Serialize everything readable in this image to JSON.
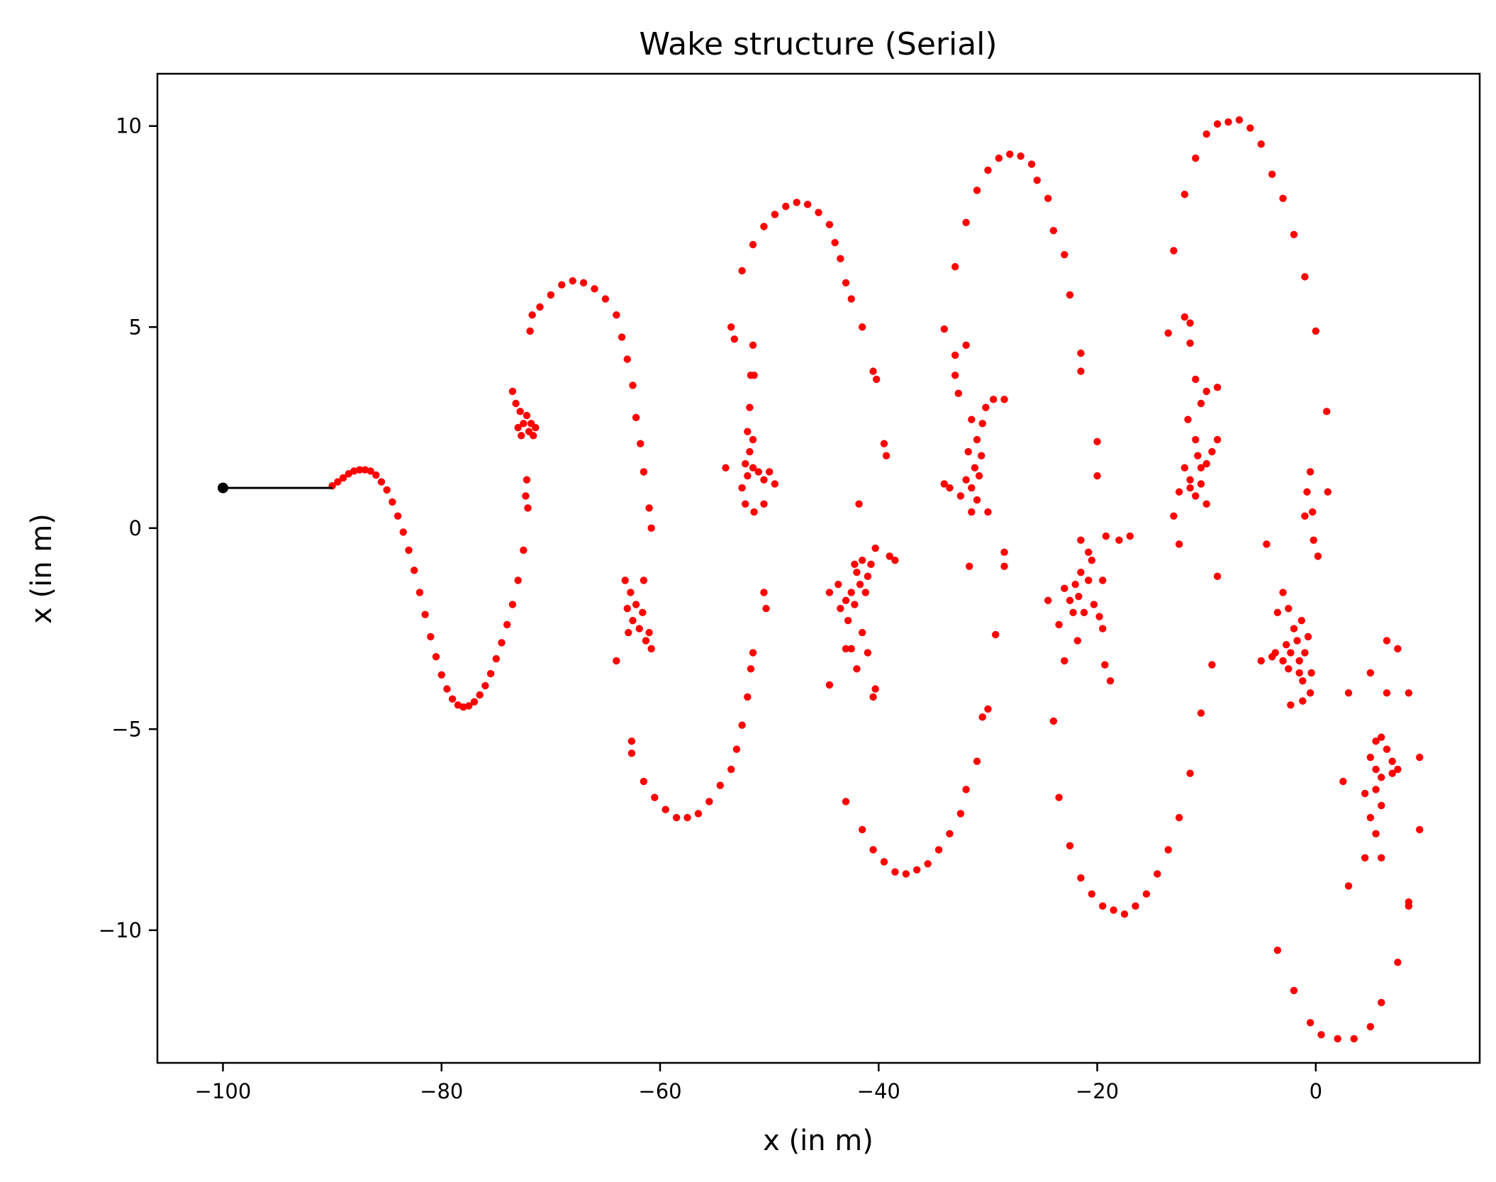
{
  "chart_data": {
    "type": "scatter",
    "title": "Wake structure (Serial)",
    "xlabel": "x (in m)",
    "ylabel": "x (in m)",
    "xlim": [
      -106,
      15
    ],
    "ylim": [
      -13.3,
      11.3
    ],
    "xticks": [
      {
        "value": -100,
        "label": "−100"
      },
      {
        "value": -80,
        "label": "−80"
      },
      {
        "value": -60,
        "label": "−60"
      },
      {
        "value": -40,
        "label": "−40"
      },
      {
        "value": -20,
        "label": "−20"
      },
      {
        "value": 0,
        "label": "0"
      }
    ],
    "yticks": [
      {
        "value": -10,
        "label": "−10"
      },
      {
        "value": -5,
        "label": "−5"
      },
      {
        "value": 0,
        "label": "0"
      },
      {
        "value": 5,
        "label": "5"
      },
      {
        "value": 10,
        "label": "10"
      }
    ],
    "grid": false,
    "colors": {
      "plate": "#000000",
      "wake": "#ff0000"
    },
    "plate": {
      "x": [
        -100,
        -90
      ],
      "y": [
        1,
        1
      ]
    },
    "wake_points": [
      [
        -90,
        1.05
      ],
      [
        -89.5,
        1.15
      ],
      [
        -89,
        1.25
      ],
      [
        -88.5,
        1.35
      ],
      [
        -88,
        1.42
      ],
      [
        -87.5,
        1.45
      ],
      [
        -87,
        1.45
      ],
      [
        -86.5,
        1.42
      ],
      [
        -86,
        1.32
      ],
      [
        -85.5,
        1.15
      ],
      [
        -85,
        0.95
      ],
      [
        -84.5,
        0.65
      ],
      [
        -84,
        0.3
      ],
      [
        -83.5,
        -0.1
      ],
      [
        -83,
        -0.55
      ],
      [
        -82.5,
        -1.05
      ],
      [
        -82,
        -1.6
      ],
      [
        -81.5,
        -2.15
      ],
      [
        -81,
        -2.7
      ],
      [
        -80.5,
        -3.2
      ],
      [
        -80,
        -3.65
      ],
      [
        -79.5,
        -4.0
      ],
      [
        -79,
        -4.25
      ],
      [
        -78.5,
        -4.4
      ],
      [
        -78,
        -4.45
      ],
      [
        -77.5,
        -4.42
      ],
      [
        -77,
        -4.32
      ],
      [
        -76.5,
        -4.15
      ],
      [
        -76,
        -3.92
      ],
      [
        -75.5,
        -3.62
      ],
      [
        -75,
        -3.25
      ],
      [
        -74.5,
        -2.85
      ],
      [
        -74,
        -2.4
      ],
      [
        -73.5,
        -1.9
      ],
      [
        -73,
        -1.3
      ],
      [
        -72.5,
        -0.55
      ],
      [
        -72.2,
        1.2
      ],
      [
        -72.3,
        0.8
      ],
      [
        -72.1,
        0.5
      ],
      [
        -71.9,
        4.9
      ],
      [
        -71.7,
        5.3
      ],
      [
        -71,
        5.5
      ],
      [
        -70,
        5.8
      ],
      [
        -69,
        6.05
      ],
      [
        -68,
        6.15
      ],
      [
        -67,
        6.1
      ],
      [
        -66,
        5.95
      ],
      [
        -65,
        5.7
      ],
      [
        -64,
        5.3
      ],
      [
        -63.5,
        4.75
      ],
      [
        -63,
        4.2
      ],
      [
        -62.5,
        3.55
      ],
      [
        -62.2,
        2.75
      ],
      [
        -61.8,
        2.1
      ],
      [
        -61.5,
        1.4
      ],
      [
        -61,
        0.5
      ],
      [
        -60.8,
        0.0
      ],
      [
        -73.5,
        3.4
      ],
      [
        -73.2,
        3.1
      ],
      [
        -72.8,
        2.9
      ],
      [
        -72.5,
        2.6
      ],
      [
        -72.2,
        2.8
      ],
      [
        -72,
        2.4
      ],
      [
        -71.8,
        2.6
      ],
      [
        -71.6,
        2.3
      ],
      [
        -71.4,
        2.5
      ],
      [
        -72.7,
        2.3
      ],
      [
        -73,
        2.5
      ],
      [
        -64,
        -3.3
      ],
      [
        -63.2,
        -1.3
      ],
      [
        -63,
        -2.0
      ],
      [
        -62.7,
        -1.6
      ],
      [
        -62.5,
        -2.3
      ],
      [
        -62.2,
        -1.9
      ],
      [
        -61.9,
        -2.5
      ],
      [
        -61.6,
        -2.1
      ],
      [
        -61.3,
        -2.8
      ],
      [
        -61,
        -2.6
      ],
      [
        -60.8,
        -3.0
      ],
      [
        -62.9,
        -2.6
      ],
      [
        -61.5,
        -1.3
      ],
      [
        -62.6,
        -5.3
      ],
      [
        -62.6,
        -5.6
      ],
      [
        -61.5,
        -6.3
      ],
      [
        -60.5,
        -6.7
      ],
      [
        -59.5,
        -7.0
      ],
      [
        -58.5,
        -7.2
      ],
      [
        -57.5,
        -7.2
      ],
      [
        -56.5,
        -7.1
      ],
      [
        -55.5,
        -6.8
      ],
      [
        -54.5,
        -6.4
      ],
      [
        -53.5,
        -6.0
      ],
      [
        -53,
        -5.5
      ],
      [
        -52.5,
        -4.9
      ],
      [
        -52,
        -4.2
      ],
      [
        -51.7,
        -3.5
      ],
      [
        -51.5,
        -3.1
      ],
      [
        -50.5,
        -1.6
      ],
      [
        -50.3,
        -2.0
      ],
      [
        -52.5,
        6.4
      ],
      [
        -51.5,
        7.05
      ],
      [
        -50.5,
        7.5
      ],
      [
        -49.5,
        7.8
      ],
      [
        -48.5,
        8.0
      ],
      [
        -47.5,
        8.1
      ],
      [
        -46.5,
        8.05
      ],
      [
        -45.5,
        7.85
      ],
      [
        -44.5,
        7.55
      ],
      [
        -44,
        7.1
      ],
      [
        -43.5,
        6.7
      ],
      [
        -43,
        6.1
      ],
      [
        -42.5,
        5.7
      ],
      [
        -41.5,
        5.0
      ],
      [
        -40.5,
        3.9
      ],
      [
        -40.2,
        3.7
      ],
      [
        -39.5,
        2.1
      ],
      [
        -39.3,
        1.8
      ],
      [
        -53.5,
        5.0
      ],
      [
        -53.2,
        4.7
      ],
      [
        -51.5,
        4.55
      ],
      [
        -51.7,
        3.8
      ],
      [
        -51.4,
        3.8
      ],
      [
        -51.8,
        3.0
      ],
      [
        -52,
        2.4
      ],
      [
        -51.5,
        2.2
      ],
      [
        -52.2,
        1.6
      ],
      [
        -51.5,
        1.5
      ],
      [
        -52,
        1.3
      ],
      [
        -51,
        1.4
      ],
      [
        -50.5,
        1.2
      ],
      [
        -50,
        1.4
      ],
      [
        -49.5,
        1.1
      ],
      [
        -52.2,
        0.6
      ],
      [
        -51.4,
        0.4
      ],
      [
        -50.5,
        0.6
      ],
      [
        -54,
        1.5
      ],
      [
        -52.5,
        1.0
      ],
      [
        -51.8,
        1.9
      ],
      [
        -44.5,
        -1.6
      ],
      [
        -43.7,
        -1.4
      ],
      [
        -43.5,
        -2.0
      ],
      [
        -43,
        -1.8
      ],
      [
        -42.8,
        -2.3
      ],
      [
        -42.5,
        -1.6
      ],
      [
        -42,
        -1.1
      ],
      [
        -41.7,
        -1.4
      ],
      [
        -41.5,
        -0.8
      ],
      [
        -41,
        -1.2
      ],
      [
        -40.7,
        -0.9
      ],
      [
        -40.3,
        -0.5
      ],
      [
        -39,
        -0.7
      ],
      [
        -38.5,
        -0.8
      ],
      [
        -42.2,
        -1.9
      ],
      [
        -41.2,
        -1.6
      ],
      [
        -43,
        -3.0
      ],
      [
        -42.5,
        -3.0
      ],
      [
        -41,
        -3.1
      ],
      [
        -42,
        -3.5
      ],
      [
        -44.5,
        -3.9
      ],
      [
        -40.3,
        -4.0
      ],
      [
        -40.5,
        -4.2
      ],
      [
        -41.8,
        0.6
      ],
      [
        -42.2,
        -0.9
      ],
      [
        -41.5,
        -2.6
      ],
      [
        -43,
        -6.8
      ],
      [
        -41.5,
        -7.5
      ],
      [
        -40.5,
        -8.0
      ],
      [
        -39.5,
        -8.3
      ],
      [
        -38.5,
        -8.55
      ],
      [
        -37.5,
        -8.6
      ],
      [
        -36.5,
        -8.5
      ],
      [
        -35.5,
        -8.35
      ],
      [
        -34.5,
        -8.0
      ],
      [
        -33.5,
        -7.6
      ],
      [
        -32.5,
        -7.1
      ],
      [
        -32,
        -6.5
      ],
      [
        -31,
        -5.8
      ],
      [
        -30.5,
        -4.7
      ],
      [
        -30,
        -4.5
      ],
      [
        -29.3,
        -2.65
      ],
      [
        -28.5,
        -0.6
      ],
      [
        -28.5,
        -0.95
      ],
      [
        -33,
        6.5
      ],
      [
        -32,
        7.6
      ],
      [
        -31,
        8.4
      ],
      [
        -30,
        8.9
      ],
      [
        -29,
        9.2
      ],
      [
        -28,
        9.3
      ],
      [
        -27,
        9.25
      ],
      [
        -26,
        9.05
      ],
      [
        -25.5,
        8.65
      ],
      [
        -24.5,
        8.2
      ],
      [
        -24,
        7.4
      ],
      [
        -23,
        6.8
      ],
      [
        -22.5,
        5.8
      ],
      [
        -21.5,
        4.35
      ],
      [
        -21.5,
        3.9
      ],
      [
        -20,
        2.15
      ],
      [
        -20,
        1.3
      ],
      [
        -34,
        4.95
      ],
      [
        -33,
        4.3
      ],
      [
        -32,
        4.55
      ],
      [
        -33,
        3.8
      ],
      [
        -32.7,
        3.35
      ],
      [
        -31.5,
        2.7
      ],
      [
        -31,
        2.2
      ],
      [
        -30.5,
        2.6
      ],
      [
        -31.8,
        1.9
      ],
      [
        -31.2,
        1.5
      ],
      [
        -30.6,
        1.8
      ],
      [
        -32,
        1.2
      ],
      [
        -31.5,
        1.0
      ],
      [
        -30.8,
        1.3
      ],
      [
        -32.5,
        0.8
      ],
      [
        -31,
        0.7
      ],
      [
        -34,
        1.1
      ],
      [
        -33.5,
        1.0
      ],
      [
        -30,
        0.4
      ],
      [
        -31.5,
        0.4
      ],
      [
        -31.7,
        -0.95
      ],
      [
        -29.5,
        3.2
      ],
      [
        -28.5,
        3.2
      ],
      [
        -30.2,
        3.0
      ],
      [
        -24.5,
        -1.8
      ],
      [
        -23.5,
        -2.4
      ],
      [
        -23,
        -1.5
      ],
      [
        -22.5,
        -1.8
      ],
      [
        -22.2,
        -2.1
      ],
      [
        -22,
        -1.4
      ],
      [
        -21.7,
        -1.7
      ],
      [
        -21.5,
        -1.1
      ],
      [
        -21.2,
        -2.1
      ],
      [
        -20.8,
        -1.3
      ],
      [
        -20.5,
        -0.8
      ],
      [
        -20.3,
        -1.9
      ],
      [
        -19.8,
        -2.2
      ],
      [
        -19.5,
        -2.5
      ],
      [
        -19.2,
        -0.2
      ],
      [
        -18,
        -0.3
      ],
      [
        -17,
        -0.2
      ],
      [
        -21.5,
        -0.3
      ],
      [
        -20.8,
        -0.6
      ],
      [
        -23,
        -3.3
      ],
      [
        -21.8,
        -2.8
      ],
      [
        -19.3,
        -3.4
      ],
      [
        -18.8,
        -3.8
      ],
      [
        -24,
        -4.8
      ],
      [
        -19.5,
        -1.3
      ],
      [
        -23.5,
        -6.7
      ],
      [
        -22.5,
        -7.9
      ],
      [
        -21.5,
        -8.7
      ],
      [
        -20.5,
        -9.1
      ],
      [
        -19.5,
        -9.4
      ],
      [
        -18.5,
        -9.5
      ],
      [
        -17.5,
        -9.6
      ],
      [
        -16.5,
        -9.4
      ],
      [
        -15.5,
        -9.1
      ],
      [
        -14.5,
        -8.6
      ],
      [
        -13.5,
        -8.0
      ],
      [
        -12.5,
        -7.2
      ],
      [
        -11.5,
        -6.1
      ],
      [
        -10.5,
        -4.6
      ],
      [
        -9.5,
        -3.4
      ],
      [
        -9,
        -1.2
      ],
      [
        -13,
        6.9
      ],
      [
        -12,
        8.3
      ],
      [
        -11,
        9.2
      ],
      [
        -10,
        9.8
      ],
      [
        -9,
        10.05
      ],
      [
        -8,
        10.1
      ],
      [
        -7,
        10.15
      ],
      [
        -6,
        9.95
      ],
      [
        -5,
        9.55
      ],
      [
        -4,
        8.8
      ],
      [
        -3,
        8.2
      ],
      [
        -2,
        7.3
      ],
      [
        -1,
        6.25
      ],
      [
        0,
        4.9
      ],
      [
        1,
        2.9
      ],
      [
        1.1,
        0.9
      ],
      [
        -13.5,
        4.85
      ],
      [
        -12,
        5.25
      ],
      [
        -11.5,
        5.1
      ],
      [
        -11.5,
        4.6
      ],
      [
        -11,
        3.7
      ],
      [
        -10,
        3.4
      ],
      [
        -9,
        3.5
      ],
      [
        -10.5,
        3.1
      ],
      [
        -11.7,
        2.7
      ],
      [
        -11,
        2.2
      ],
      [
        -10,
        1.6
      ],
      [
        -9,
        2.2
      ],
      [
        -12,
        1.5
      ],
      [
        -11.5,
        1.2
      ],
      [
        -10.8,
        1.8
      ],
      [
        -10.5,
        1.1
      ],
      [
        -11,
        0.8
      ],
      [
        -10,
        0.6
      ],
      [
        -9.5,
        1.9
      ],
      [
        -12.5,
        0.9
      ],
      [
        -13,
        0.3
      ],
      [
        -12.5,
        -0.4
      ],
      [
        -10.5,
        1.5
      ],
      [
        -11.5,
        1.0
      ],
      [
        -4.5,
        -0.4
      ],
      [
        -3.5,
        -2.1
      ],
      [
        -3.7,
        -3.1
      ],
      [
        -3,
        -3.3
      ],
      [
        -2.7,
        -2.9
      ],
      [
        -2.3,
        -3.1
      ],
      [
        -2,
        -2.5
      ],
      [
        -1.7,
        -2.8
      ],
      [
        -1.5,
        -3.3
      ],
      [
        -1.3,
        -2.3
      ],
      [
        -1,
        -3.1
      ],
      [
        -0.7,
        -2.7
      ],
      [
        -0.4,
        -3.6
      ],
      [
        -1.2,
        -3.8
      ],
      [
        -2.5,
        -3.5
      ],
      [
        -2.3,
        -4.4
      ],
      [
        -1.2,
        -4.3
      ],
      [
        -0.5,
        -4.1
      ],
      [
        -2.5,
        -2.0
      ],
      [
        -0.8,
        0.9
      ],
      [
        -0.5,
        1.4
      ],
      [
        -1,
        0.3
      ],
      [
        -0.3,
        0.4
      ],
      [
        -0.2,
        -0.3
      ],
      [
        0.2,
        -0.7
      ],
      [
        -1.5,
        -3.6
      ],
      [
        -3,
        -1.6
      ],
      [
        -4,
        -3.2
      ],
      [
        -5,
        -3.3
      ],
      [
        -3.5,
        -10.5
      ],
      [
        -2,
        -11.5
      ],
      [
        -0.5,
        -12.3
      ],
      [
        0.5,
        -12.6
      ],
      [
        2,
        -12.7
      ],
      [
        3.5,
        -12.7
      ],
      [
        5,
        -12.4
      ],
      [
        6,
        -11.8
      ],
      [
        7.5,
        -10.8
      ],
      [
        8.5,
        -9.4
      ],
      [
        9.5,
        -7.5
      ],
      [
        9.5,
        -5.7
      ],
      [
        3,
        -4.1
      ],
      [
        5,
        -3.6
      ],
      [
        6.5,
        -2.8
      ],
      [
        7.5,
        -3.0
      ],
      [
        8.5,
        -4.1
      ],
      [
        4.5,
        -6.6
      ],
      [
        5.5,
        -6.0
      ],
      [
        5,
        -5.7
      ],
      [
        6,
        -5.2
      ],
      [
        6.5,
        -5.5
      ],
      [
        7,
        -5.8
      ],
      [
        7.5,
        -6.0
      ],
      [
        5.5,
        -6.5
      ],
      [
        6,
        -6.9
      ],
      [
        7,
        -6.1
      ],
      [
        6.5,
        -4.1
      ],
      [
        5,
        -7.2
      ],
      [
        6,
        -8.2
      ],
      [
        5.5,
        -7.6
      ],
      [
        4.5,
        -8.2
      ],
      [
        3,
        -8.9
      ],
      [
        2.5,
        -6.3
      ],
      [
        8.5,
        -9.3
      ],
      [
        5.5,
        -5.3
      ],
      [
        6,
        -6.2
      ]
    ]
  }
}
